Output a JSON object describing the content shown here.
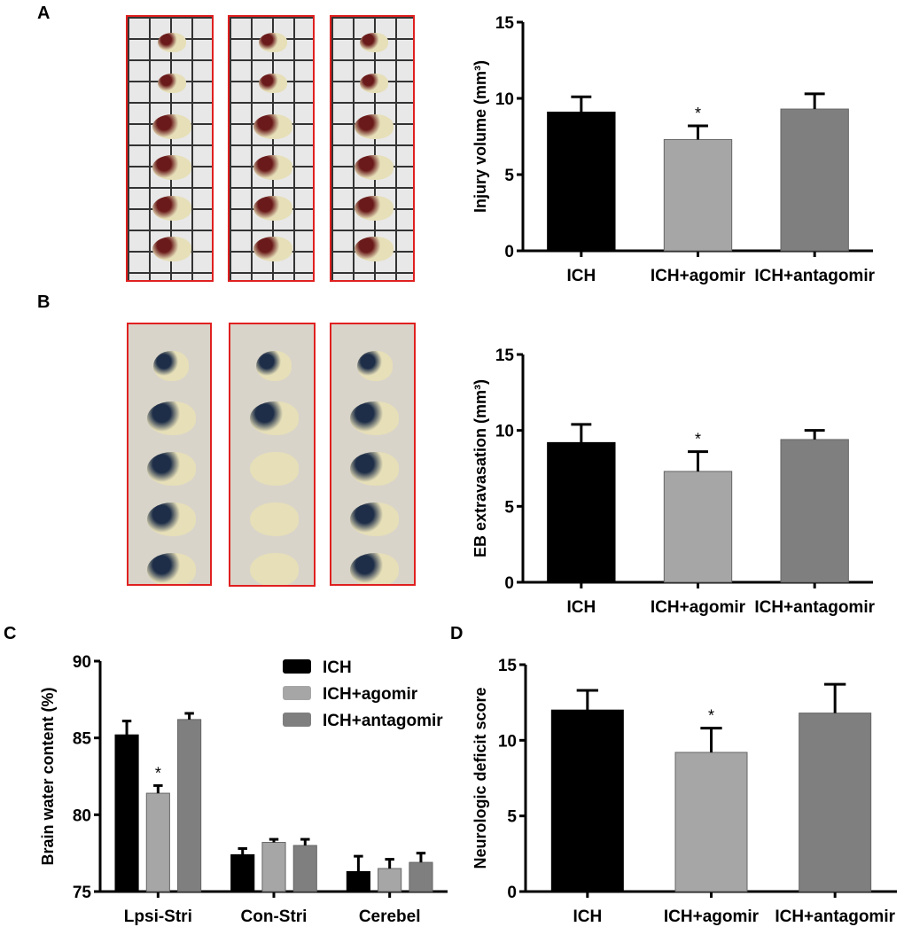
{
  "panels": {
    "a": "A",
    "b": "B",
    "c": "C",
    "d": "D"
  },
  "colors": {
    "ich": "#000000",
    "agomir": "#a6a6a6",
    "antagomir": "#7f7f7f",
    "photo_border": "#e02020"
  },
  "chart_data": [
    {
      "id": "A",
      "type": "bar",
      "ylabel": "Injury volume (mm³)",
      "ylim": [
        0,
        15
      ],
      "yticks": [
        0,
        5,
        10,
        15
      ],
      "categories": [
        "ICH",
        "ICH+agomir",
        "ICH+antagomir"
      ],
      "values": [
        9.1,
        7.3,
        9.3
      ],
      "errors": [
        1.0,
        0.9,
        1.0
      ],
      "significance": [
        "",
        "*",
        ""
      ]
    },
    {
      "id": "B",
      "type": "bar",
      "ylabel": "EB extravasation (mm³)",
      "ylim": [
        0,
        15
      ],
      "yticks": [
        0,
        5,
        10,
        15
      ],
      "categories": [
        "ICH",
        "ICH+agomir",
        "ICH+antagomir"
      ],
      "values": [
        9.2,
        7.3,
        9.4
      ],
      "errors": [
        1.2,
        1.3,
        0.6
      ],
      "significance": [
        "",
        "*",
        ""
      ]
    },
    {
      "id": "C",
      "type": "bar",
      "ylabel": "Brain water content (%)",
      "ylim": [
        75,
        90
      ],
      "yticks": [
        75,
        80,
        85,
        90
      ],
      "categories": [
        "Lpsi-Stri",
        "Con-Stri",
        "Cerebel"
      ],
      "legend": {
        "placement": "top-right",
        "entries": [
          "ICH",
          "ICH+agomir",
          "ICH+antagomir"
        ]
      },
      "series": [
        {
          "name": "ICH",
          "values": [
            85.2,
            77.4,
            76.3
          ],
          "errors": [
            0.9,
            0.4,
            1.0
          ],
          "significance": [
            "",
            "",
            ""
          ]
        },
        {
          "name": "ICH+agomir",
          "values": [
            81.4,
            78.2,
            76.5
          ],
          "errors": [
            0.5,
            0.2,
            0.6
          ],
          "significance": [
            "*",
            "",
            ""
          ]
        },
        {
          "name": "ICH+antagomir",
          "values": [
            86.2,
            78.0,
            76.9
          ],
          "errors": [
            0.4,
            0.4,
            0.6
          ],
          "significance": [
            "",
            "",
            ""
          ]
        }
      ]
    },
    {
      "id": "D",
      "type": "bar",
      "ylabel": "Neurologic deficit score",
      "ylim": [
        0,
        15
      ],
      "yticks": [
        0,
        5,
        10,
        15
      ],
      "categories": [
        "ICH",
        "ICH+agomir",
        "ICH+antagomir"
      ],
      "values": [
        12.0,
        9.2,
        11.8
      ],
      "errors": [
        1.3,
        1.6,
        1.9
      ],
      "significance": [
        "",
        "*",
        ""
      ]
    }
  ]
}
